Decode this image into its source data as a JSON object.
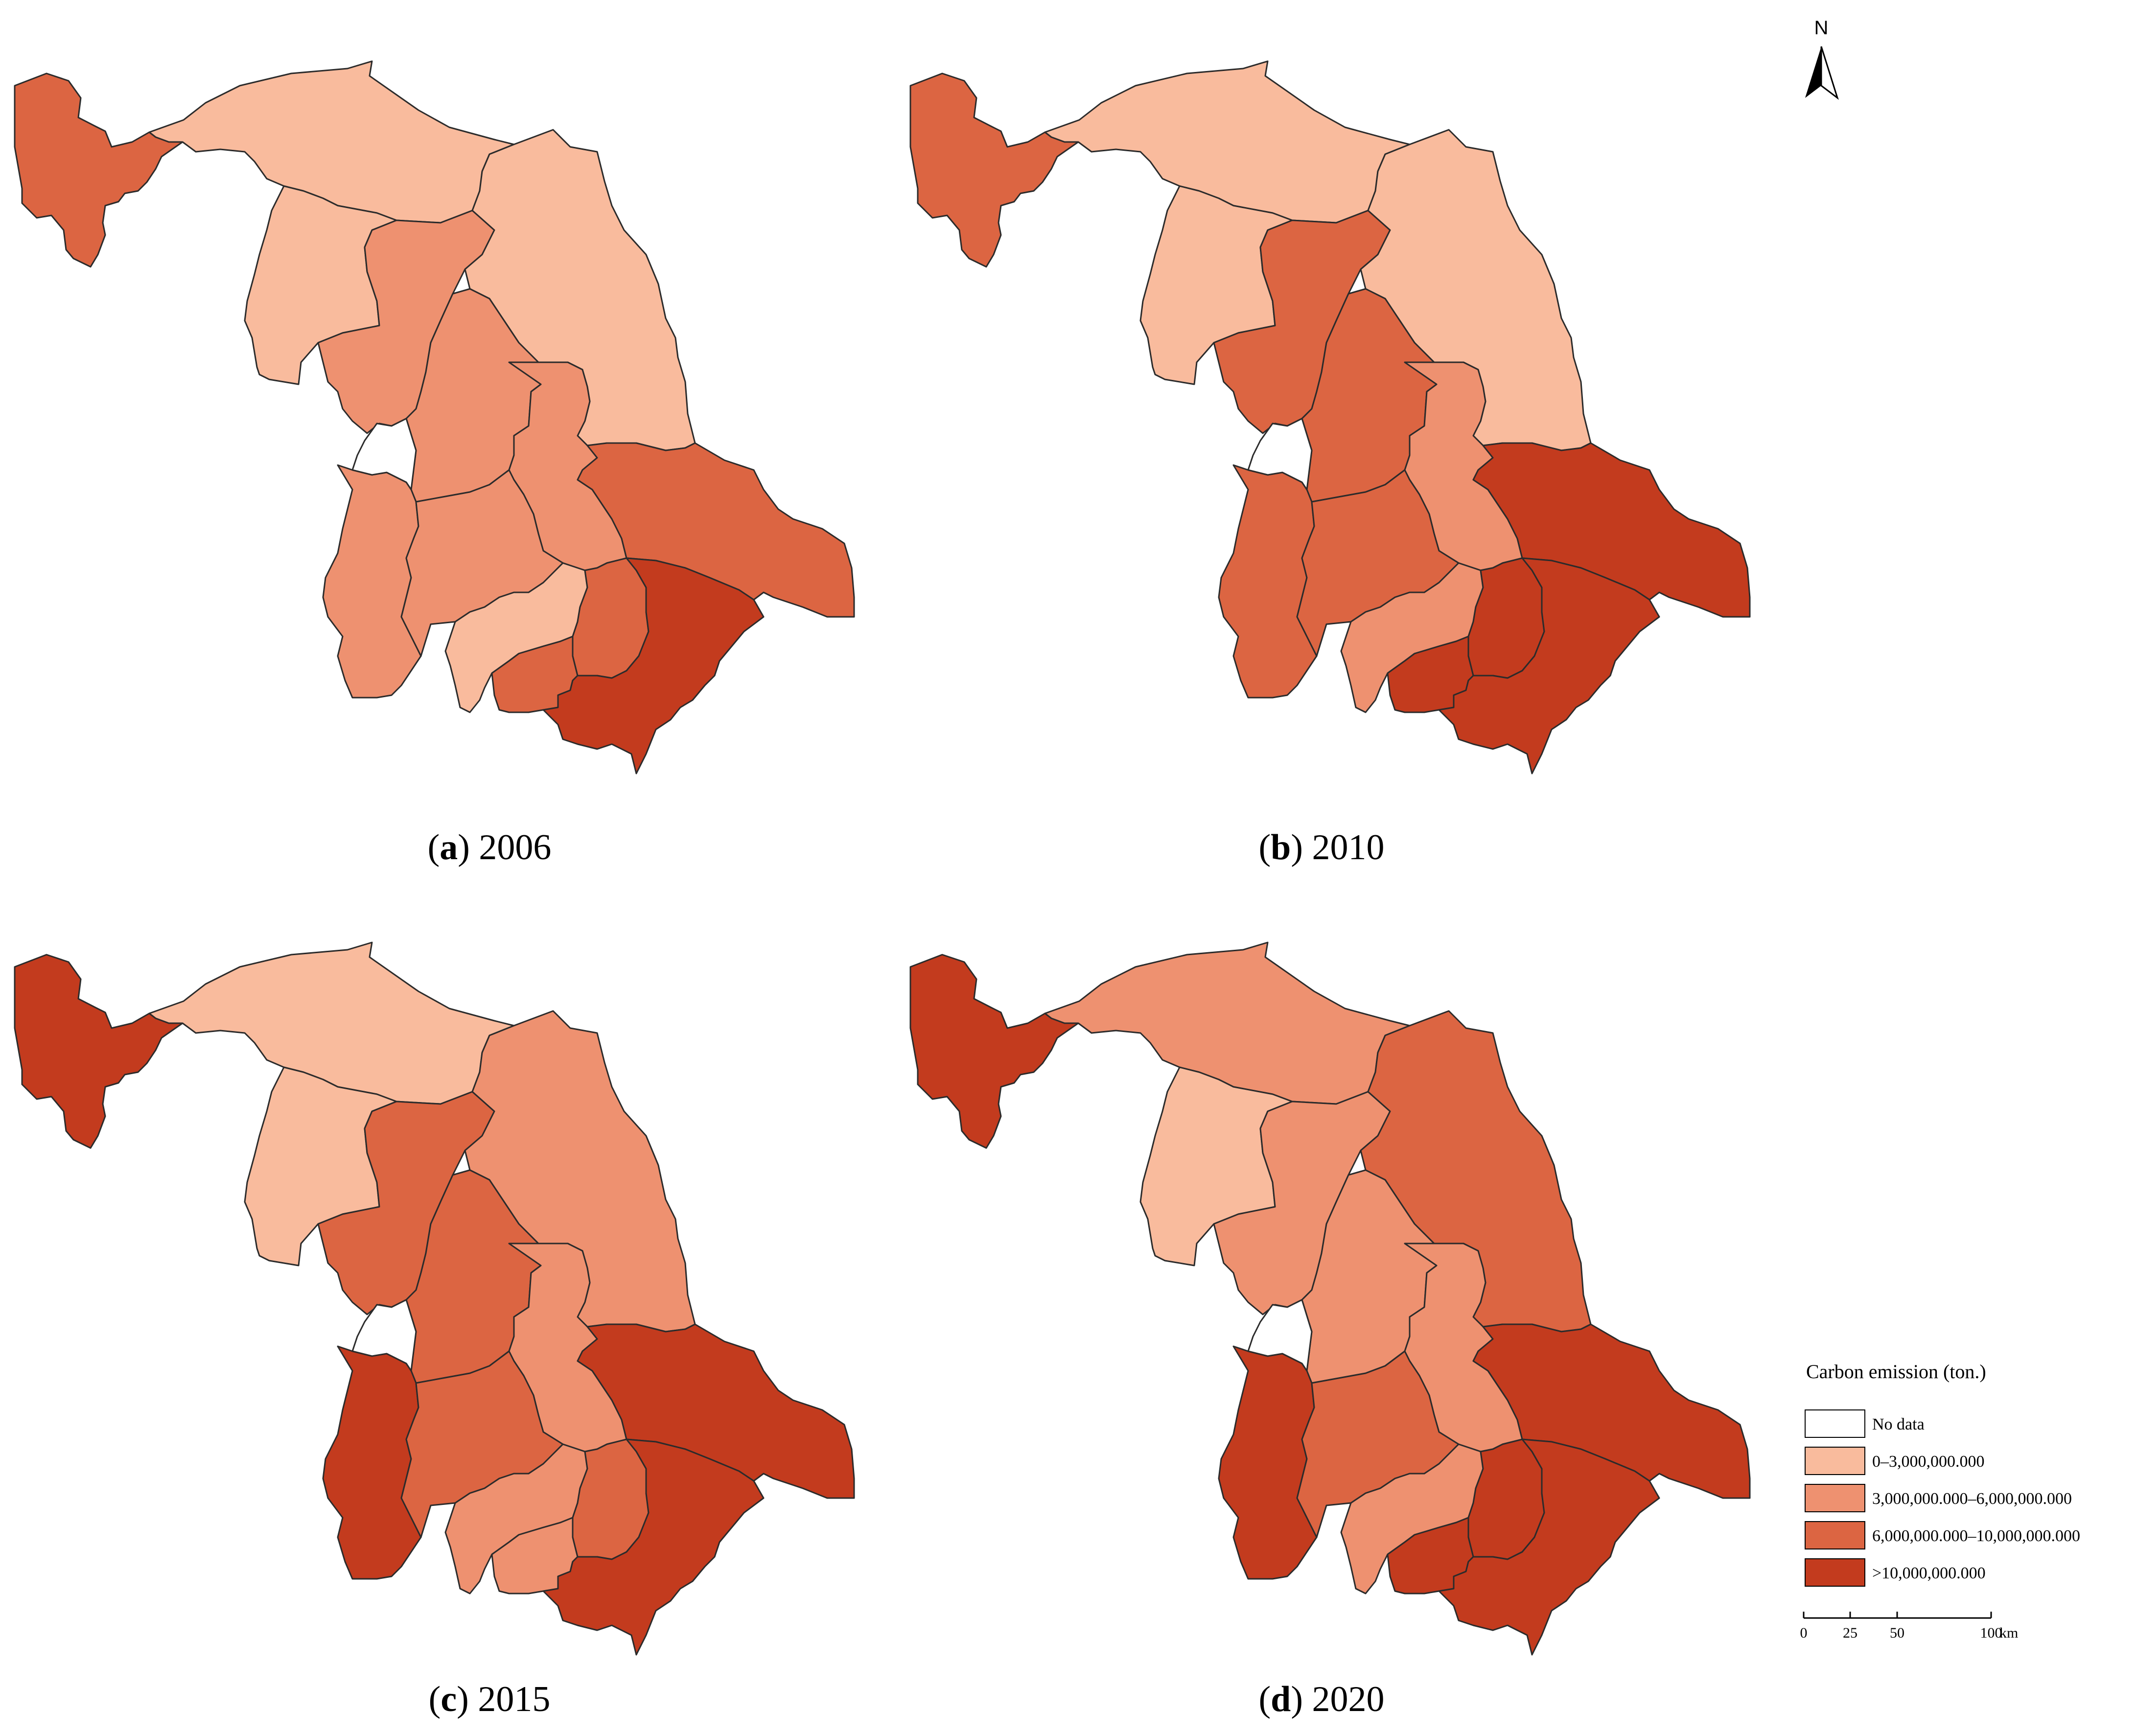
{
  "colors": {
    "no_data": "#ffffff",
    "class_1": "#f9bb9d",
    "class_2": "#ee9170",
    "class_3": "#dc6542",
    "class_4": "#c33b1e",
    "border": "#2b2b2b"
  },
  "north_arrow": {
    "label": "N",
    "icon": "north-arrow-icon"
  },
  "panels": [
    {
      "letter": "a",
      "year": "2006",
      "regions": {
        "xuzhou": "class_3",
        "lianyungang": "class_1",
        "suqian": "class_1",
        "huaian": "class_2",
        "yancheng": "class_1",
        "lianshui": "class_2",
        "yangzhou": "class_2",
        "taizhou": "class_3",
        "nantong": "class_2",
        "nanjing": "class_2",
        "zhenjiang": "class_2",
        "changzhou": "class_1",
        "wuxi": "class_3",
        "yixing": "class_3",
        "suzhou": "class_4",
        "hole": "no_data"
      }
    },
    {
      "letter": "b",
      "year": "2010",
      "regions": {
        "xuzhou": "class_3",
        "lianyungang": "class_1",
        "suqian": "class_1",
        "huaian": "class_3",
        "yancheng": "class_1",
        "lianshui": "class_3",
        "yangzhou": "class_2",
        "taizhou": "class_4",
        "nantong": "class_3",
        "nanjing": "class_3",
        "zhenjiang": "class_3",
        "changzhou": "class_2",
        "wuxi": "class_4",
        "yixing": "class_4",
        "suzhou": "class_4",
        "hole": "no_data"
      }
    },
    {
      "letter": "c",
      "year": "2015",
      "regions": {
        "xuzhou": "class_4",
        "lianyungang": "class_1",
        "suqian": "class_1",
        "huaian": "class_3",
        "yancheng": "class_2",
        "lianshui": "class_3",
        "yangzhou": "class_2",
        "taizhou": "class_4",
        "nantong": "class_3",
        "nanjing": "class_4",
        "zhenjiang": "class_3",
        "changzhou": "class_2",
        "wuxi": "class_3",
        "yixing": "class_2",
        "suzhou": "class_4",
        "hole": "no_data"
      }
    },
    {
      "letter": "d",
      "year": "2020",
      "regions": {
        "xuzhou": "class_4",
        "lianyungang": "class_2",
        "suqian": "class_1",
        "huaian": "class_2",
        "yancheng": "class_3",
        "lianshui": "class_2",
        "yangzhou": "class_2",
        "taizhou": "class_4",
        "nantong": "class_3",
        "nanjing": "class_4",
        "zhenjiang": "class_3",
        "changzhou": "class_2",
        "wuxi": "class_4",
        "yixing": "class_4",
        "suzhou": "class_4",
        "hole": "no_data"
      }
    }
  ],
  "legend": {
    "title": "Carbon emission (ton.)",
    "items": [
      {
        "label": "No data",
        "color_key": "no_data"
      },
      {
        "label": "0–3,000,000.000",
        "color_key": "class_1"
      },
      {
        "label": "3,000,000.000–6,000,000.000",
        "color_key": "class_2"
      },
      {
        "label": "6,000,000.000–10,000,000.000",
        "color_key": "class_3"
      },
      {
        "label": ">10,000,000.000",
        "color_key": "class_4"
      }
    ]
  },
  "scale_bar": {
    "ticks": [
      "0",
      "25",
      "50",
      "100"
    ],
    "unit": "km"
  }
}
